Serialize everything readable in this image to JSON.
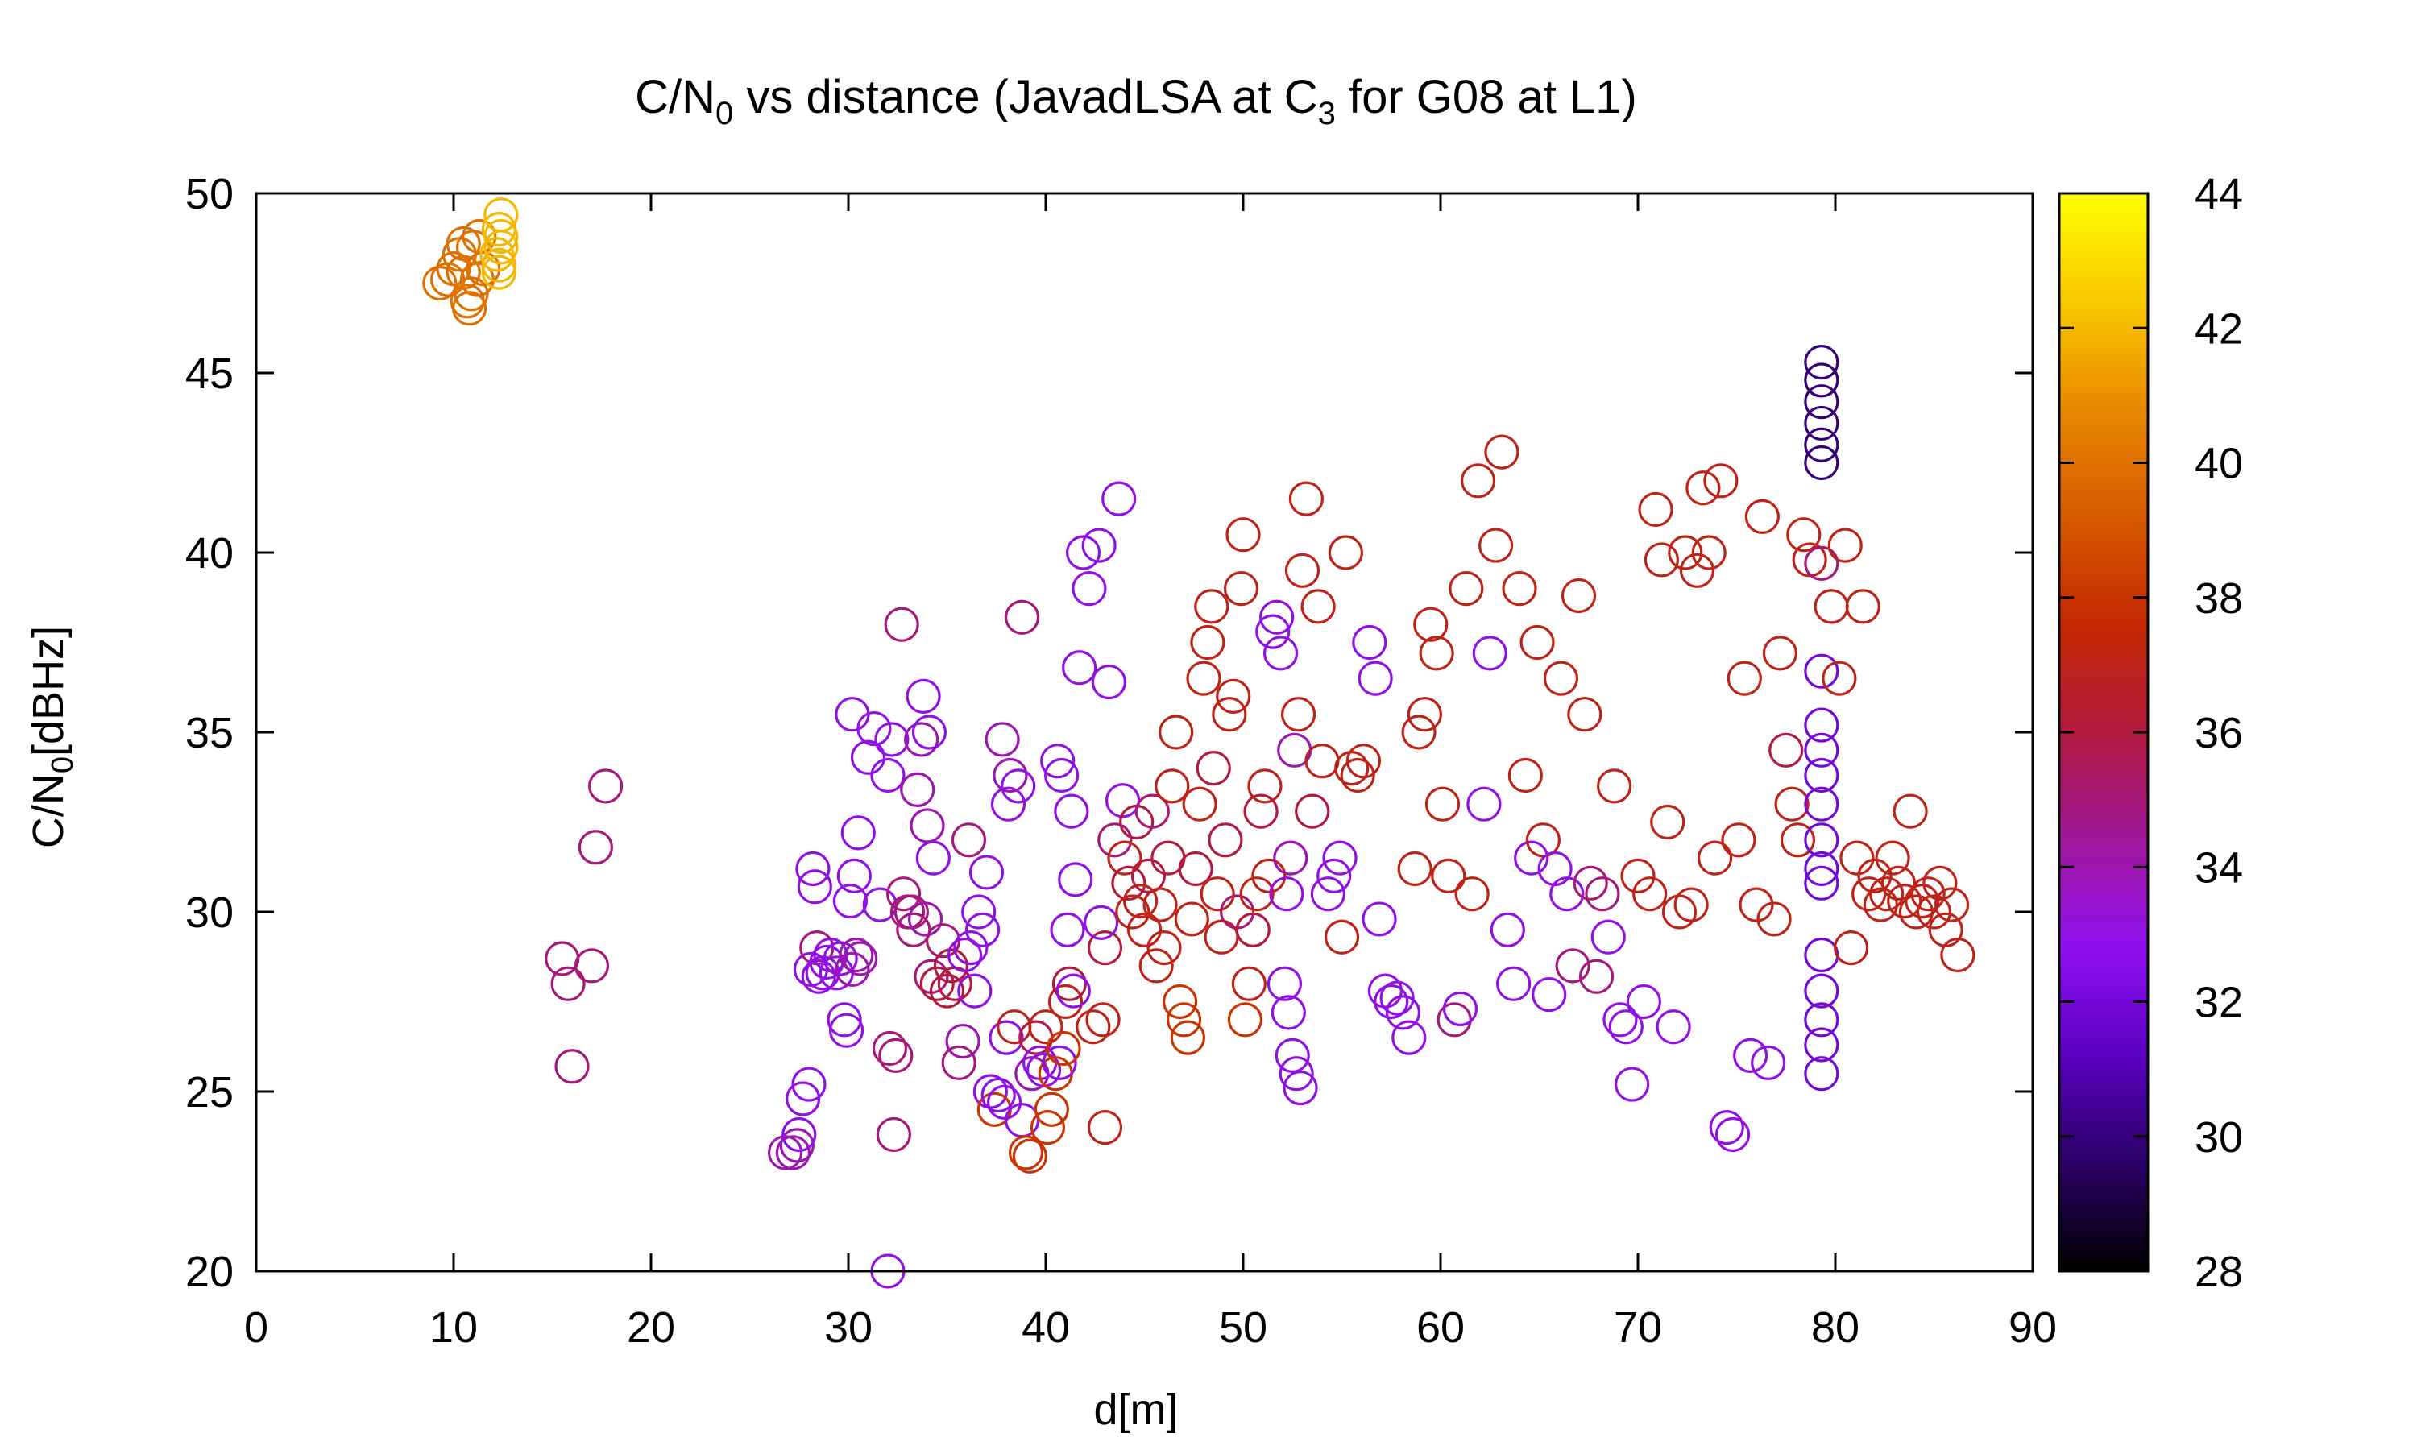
{
  "chart_data": {
    "type": "scatter",
    "title_main": "C/N",
    "title_sub": "0",
    "title_mid": " vs distance (JavadLSA at C",
    "title_sub2": "3",
    "title_end": " for G08 at L1)",
    "xlabel": "d[m]",
    "ylabel_main": "C/N",
    "ylabel_sub": "0",
    "ylabel_end": "[dBHz]",
    "xlim": [
      0,
      90
    ],
    "ylim": [
      20,
      50
    ],
    "x_ticks": [
      "0",
      "10",
      "20",
      "30",
      "40",
      "50",
      "60",
      "70",
      "80",
      "90"
    ],
    "y_ticks": [
      "20",
      "25",
      "30",
      "35",
      "40",
      "45",
      "50"
    ],
    "colorbar": {
      "range": [
        28,
        44
      ],
      "ticks": [
        "28",
        "30",
        "32",
        "34",
        "36",
        "38",
        "40",
        "42",
        "44"
      ],
      "palette": [
        "#000000",
        "#2a0066",
        "#5a00c0",
        "#8f10f0",
        "#a0189a",
        "#b31a40",
        "#c42800",
        "#d65a00",
        "#e88800",
        "#f8c800",
        "#ffff00"
      ]
    },
    "grid": false,
    "legend": "none",
    "points": [
      [
        9.3,
        47.5,
        40
      ],
      [
        9.7,
        47.6,
        40
      ],
      [
        10.0,
        47.9,
        40
      ],
      [
        10.3,
        48.3,
        40
      ],
      [
        10.5,
        47.8,
        40
      ],
      [
        10.7,
        47.0,
        40
      ],
      [
        10.8,
        46.8,
        40
      ],
      [
        11.0,
        48.5,
        40
      ],
      [
        10.5,
        48.6,
        40
      ],
      [
        11.2,
        47.6,
        40
      ],
      [
        11.5,
        47.9,
        40
      ],
      [
        11.3,
        48.8,
        40
      ],
      [
        10.9,
        47.2,
        40
      ],
      [
        12.3,
        48.0,
        42
      ],
      [
        12.4,
        48.5,
        42
      ],
      [
        12.3,
        49.0,
        42
      ],
      [
        12.4,
        49.4,
        42
      ],
      [
        12.3,
        47.8,
        42
      ],
      [
        12.2,
        48.3,
        42
      ],
      [
        12.4,
        48.8,
        42
      ],
      [
        15.5,
        28.7,
        35
      ],
      [
        15.8,
        28.0,
        35
      ],
      [
        16.0,
        25.7,
        35
      ],
      [
        17.0,
        28.5,
        35
      ],
      [
        17.2,
        31.8,
        35
      ],
      [
        17.7,
        33.5,
        35
      ],
      [
        26.8,
        23.3,
        34
      ],
      [
        27.2,
        23.3,
        34
      ],
      [
        27.4,
        23.5,
        34
      ],
      [
        27.5,
        23.8,
        33
      ],
      [
        27.7,
        24.8,
        33
      ],
      [
        28.0,
        25.2,
        33
      ],
      [
        28.1,
        28.4,
        33
      ],
      [
        28.3,
        30.7,
        33
      ],
      [
        28.2,
        31.2,
        33
      ],
      [
        28.4,
        29.0,
        35
      ],
      [
        28.5,
        28.2,
        33
      ],
      [
        28.7,
        28.3,
        33
      ],
      [
        28.9,
        28.6,
        33
      ],
      [
        29.1,
        28.8,
        33
      ],
      [
        29.4,
        28.3,
        33
      ],
      [
        29.6,
        28.7,
        33
      ],
      [
        29.8,
        27.0,
        33
      ],
      [
        29.9,
        26.7,
        33
      ],
      [
        30.2,
        28.4,
        34
      ],
      [
        30.4,
        28.8,
        34
      ],
      [
        30.6,
        28.7,
        34
      ],
      [
        30.1,
        30.3,
        33
      ],
      [
        30.3,
        31.0,
        33
      ],
      [
        30.5,
        32.2,
        33
      ],
      [
        30.2,
        35.5,
        33
      ],
      [
        31.0,
        34.3,
        33
      ],
      [
        31.3,
        35.1,
        33
      ],
      [
        31.6,
        30.2,
        33
      ],
      [
        32.0,
        33.8,
        33
      ],
      [
        32.2,
        34.8,
        33
      ],
      [
        32.4,
        26.0,
        35
      ],
      [
        32.1,
        26.2,
        35
      ],
      [
        32.3,
        23.8,
        35
      ],
      [
        32.0,
        20.0,
        33
      ],
      [
        32.7,
        38.0,
        35
      ],
      [
        32.8,
        30.5,
        35
      ],
      [
        33.0,
        30.0,
        35
      ],
      [
        33.2,
        30.0,
        35
      ],
      [
        33.3,
        29.5,
        35
      ],
      [
        33.5,
        33.4,
        34
      ],
      [
        33.7,
        34.8,
        34
      ],
      [
        33.8,
        36.0,
        33
      ],
      [
        34.1,
        35.0,
        33
      ],
      [
        34.3,
        31.5,
        33
      ],
      [
        34.0,
        32.4,
        34
      ],
      [
        33.9,
        29.8,
        34
      ],
      [
        34.2,
        28.2,
        35
      ],
      [
        34.5,
        28.0,
        36
      ],
      [
        34.8,
        29.2,
        35
      ],
      [
        35.0,
        27.8,
        36
      ],
      [
        35.2,
        28.5,
        36
      ],
      [
        35.4,
        28.0,
        36
      ],
      [
        35.6,
        25.8,
        35
      ],
      [
        35.8,
        26.4,
        34
      ],
      [
        35.9,
        28.8,
        33
      ],
      [
        36.2,
        29.0,
        33
      ],
      [
        36.4,
        27.8,
        33
      ],
      [
        36.6,
        30.0,
        33
      ],
      [
        36.8,
        29.5,
        33
      ],
      [
        36.1,
        32.0,
        35
      ],
      [
        37.0,
        31.1,
        33
      ],
      [
        37.2,
        25.0,
        33
      ],
      [
        37.4,
        24.5,
        38
      ],
      [
        37.6,
        24.9,
        33
      ],
      [
        37.9,
        24.7,
        33
      ],
      [
        38.0,
        26.5,
        33
      ],
      [
        38.1,
        33.0,
        33
      ],
      [
        38.2,
        33.8,
        34
      ],
      [
        37.8,
        34.8,
        34
      ],
      [
        38.4,
        26.8,
        37
      ],
      [
        38.6,
        33.5,
        33
      ],
      [
        38.8,
        24.2,
        33
      ],
      [
        38.8,
        38.2,
        35
      ],
      [
        39.0,
        23.3,
        38
      ],
      [
        39.2,
        23.2,
        38
      ],
      [
        39.3,
        25.5,
        34
      ],
      [
        39.5,
        26.5,
        36
      ],
      [
        39.7,
        25.8,
        33
      ],
      [
        39.9,
        25.6,
        33
      ],
      [
        40.0,
        26.8,
        37
      ],
      [
        40.1,
        24.0,
        38
      ],
      [
        40.3,
        24.5,
        38
      ],
      [
        40.5,
        25.5,
        38
      ],
      [
        40.7,
        25.8,
        33
      ],
      [
        40.9,
        26.2,
        38
      ],
      [
        41.0,
        27.5,
        37
      ],
      [
        41.2,
        28.0,
        36
      ],
      [
        41.4,
        27.8,
        33
      ],
      [
        41.1,
        29.5,
        33
      ],
      [
        41.5,
        30.9,
        33
      ],
      [
        40.6,
        34.2,
        33
      ],
      [
        40.8,
        33.8,
        33
      ],
      [
        41.7,
        36.8,
        33
      ],
      [
        41.3,
        32.8,
        33
      ],
      [
        41.9,
        40.0,
        33
      ],
      [
        42.2,
        39.0,
        33
      ],
      [
        42.7,
        40.2,
        33
      ],
      [
        42.4,
        26.8,
        37
      ],
      [
        42.9,
        27.0,
        37
      ],
      [
        43.0,
        29.0,
        36
      ],
      [
        43.2,
        36.4,
        33
      ],
      [
        43.5,
        32.0,
        35
      ],
      [
        43.7,
        41.5,
        33
      ],
      [
        43.9,
        33.1,
        33
      ],
      [
        43.0,
        24.0,
        37
      ],
      [
        42.8,
        29.7,
        33
      ],
      [
        44.0,
        31.5,
        37
      ],
      [
        44.2,
        30.8,
        36
      ],
      [
        44.4,
        30.0,
        37
      ],
      [
        44.6,
        32.5,
        36
      ],
      [
        44.8,
        30.3,
        37
      ],
      [
        45.0,
        29.5,
        37
      ],
      [
        45.2,
        31.0,
        36
      ],
      [
        45.4,
        32.8,
        35
      ],
      [
        45.6,
        28.5,
        37
      ],
      [
        45.8,
        30.2,
        37
      ],
      [
        46.0,
        29.0,
        37
      ],
      [
        46.2,
        31.5,
        36
      ],
      [
        46.4,
        33.5,
        37
      ],
      [
        46.6,
        35.0,
        37
      ],
      [
        46.8,
        27.5,
        38
      ],
      [
        47.0,
        27.0,
        38
      ],
      [
        47.2,
        26.5,
        38
      ],
      [
        47.4,
        29.8,
        37
      ],
      [
        47.6,
        31.2,
        36
      ],
      [
        47.8,
        33.0,
        37
      ],
      [
        48.0,
        36.5,
        37
      ],
      [
        48.2,
        37.5,
        37
      ],
      [
        48.4,
        38.5,
        37
      ],
      [
        48.5,
        34.0,
        36
      ],
      [
        48.7,
        30.5,
        37
      ],
      [
        48.9,
        29.3,
        37
      ],
      [
        49.1,
        32.0,
        36
      ],
      [
        49.3,
        35.5,
        37
      ],
      [
        49.5,
        36.0,
        37
      ],
      [
        49.7,
        30.0,
        35
      ],
      [
        49.9,
        39.0,
        37
      ],
      [
        50.0,
        40.5,
        37
      ],
      [
        50.1,
        27.0,
        38
      ],
      [
        50.3,
        28.0,
        37
      ],
      [
        50.5,
        29.5,
        36
      ],
      [
        50.7,
        30.5,
        37
      ],
      [
        50.9,
        32.8,
        36
      ],
      [
        51.1,
        33.5,
        37
      ],
      [
        51.3,
        31.0,
        37
      ],
      [
        51.5,
        37.8,
        33
      ],
      [
        51.7,
        38.2,
        33
      ],
      [
        51.9,
        37.2,
        33
      ],
      [
        52.1,
        28.0,
        33
      ],
      [
        52.3,
        27.2,
        33
      ],
      [
        52.5,
        26.0,
        33
      ],
      [
        52.7,
        25.5,
        33
      ],
      [
        52.9,
        25.1,
        33
      ],
      [
        52.2,
        30.5,
        33
      ],
      [
        52.4,
        31.5,
        34
      ],
      [
        52.6,
        34.5,
        34
      ],
      [
        52.8,
        35.5,
        37
      ],
      [
        53.0,
        39.5,
        37
      ],
      [
        53.2,
        41.5,
        37
      ],
      [
        53.5,
        32.8,
        36
      ],
      [
        53.8,
        38.5,
        37
      ],
      [
        54.0,
        34.2,
        37
      ],
      [
        54.3,
        30.5,
        33
      ],
      [
        54.6,
        31.0,
        33
      ],
      [
        54.9,
        31.5,
        33
      ],
      [
        55.2,
        40.0,
        37
      ],
      [
        55.0,
        29.3,
        37
      ],
      [
        55.5,
        34.0,
        37
      ],
      [
        55.8,
        33.8,
        37
      ],
      [
        56.1,
        34.2,
        37
      ],
      [
        56.4,
        37.5,
        33
      ],
      [
        56.7,
        36.5,
        33
      ],
      [
        56.9,
        29.8,
        33
      ],
      [
        57.2,
        27.8,
        33
      ],
      [
        57.5,
        27.5,
        33
      ],
      [
        57.8,
        27.6,
        33
      ],
      [
        58.1,
        27.2,
        33
      ],
      [
        58.4,
        26.5,
        33
      ],
      [
        58.7,
        31.2,
        37
      ],
      [
        58.9,
        35.0,
        37
      ],
      [
        59.2,
        35.5,
        37
      ],
      [
        59.5,
        38.0,
        37
      ],
      [
        59.8,
        37.2,
        37
      ],
      [
        60.1,
        33.0,
        37
      ],
      [
        60.4,
        31.0,
        37
      ],
      [
        60.7,
        27.0,
        35
      ],
      [
        61.0,
        27.3,
        33
      ],
      [
        61.3,
        39.0,
        37
      ],
      [
        61.6,
        30.5,
        37
      ],
      [
        61.9,
        42.0,
        37
      ],
      [
        62.2,
        33.0,
        33
      ],
      [
        62.5,
        37.2,
        33
      ],
      [
        62.8,
        40.2,
        37
      ],
      [
        63.1,
        42.8,
        37
      ],
      [
        63.4,
        29.5,
        33
      ],
      [
        63.7,
        28.0,
        33
      ],
      [
        64.0,
        39.0,
        37
      ],
      [
        64.3,
        33.8,
        37
      ],
      [
        64.6,
        31.5,
        33
      ],
      [
        64.9,
        37.5,
        37
      ],
      [
        65.2,
        32.0,
        37
      ],
      [
        65.5,
        27.7,
        33
      ],
      [
        65.8,
        31.2,
        33
      ],
      [
        66.1,
        36.5,
        37
      ],
      [
        66.4,
        30.5,
        33
      ],
      [
        66.7,
        28.5,
        35
      ],
      [
        67.0,
        38.8,
        37
      ],
      [
        67.3,
        35.5,
        37
      ],
      [
        67.6,
        30.8,
        35
      ],
      [
        67.9,
        28.2,
        35
      ],
      [
        68.2,
        30.5,
        35
      ],
      [
        68.5,
        29.3,
        33
      ],
      [
        68.8,
        33.5,
        37
      ],
      [
        69.1,
        27.0,
        33
      ],
      [
        69.4,
        26.8,
        33
      ],
      [
        69.7,
        25.2,
        33
      ],
      [
        70.0,
        31.0,
        37
      ],
      [
        70.3,
        27.5,
        33
      ],
      [
        70.6,
        30.5,
        37
      ],
      [
        70.9,
        41.2,
        37
      ],
      [
        71.2,
        39.8,
        37
      ],
      [
        71.5,
        32.5,
        37
      ],
      [
        71.8,
        26.8,
        33
      ],
      [
        72.1,
        30.0,
        37
      ],
      [
        72.4,
        40.0,
        37
      ],
      [
        72.7,
        30.2,
        37
      ],
      [
        73.0,
        39.5,
        37
      ],
      [
        73.3,
        41.8,
        37
      ],
      [
        73.6,
        40.0,
        37
      ],
      [
        73.9,
        31.5,
        37
      ],
      [
        74.2,
        42.0,
        37
      ],
      [
        74.5,
        24.0,
        33
      ],
      [
        74.8,
        23.8,
        33
      ],
      [
        75.1,
        32.0,
        37
      ],
      [
        75.4,
        36.5,
        37
      ],
      [
        75.7,
        26.0,
        33
      ],
      [
        76.0,
        30.2,
        37
      ],
      [
        76.3,
        41.0,
        37
      ],
      [
        76.6,
        25.8,
        33
      ],
      [
        76.9,
        29.8,
        37
      ],
      [
        77.2,
        37.2,
        37
      ],
      [
        77.5,
        34.5,
        36
      ],
      [
        77.8,
        33.0,
        37
      ],
      [
        78.1,
        32.0,
        37
      ],
      [
        78.4,
        40.5,
        37
      ],
      [
        78.7,
        39.8,
        37
      ],
      [
        79.3,
        45.3,
        30
      ],
      [
        79.3,
        44.8,
        30
      ],
      [
        79.3,
        44.2,
        30
      ],
      [
        79.3,
        43.6,
        30
      ],
      [
        79.3,
        43.0,
        30
      ],
      [
        79.3,
        42.5,
        30
      ],
      [
        79.3,
        36.7,
        32
      ],
      [
        79.3,
        35.2,
        32
      ],
      [
        79.3,
        34.5,
        32
      ],
      [
        79.3,
        33.8,
        32
      ],
      [
        79.3,
        33.0,
        32
      ],
      [
        79.3,
        32.0,
        32
      ],
      [
        79.3,
        31.2,
        32
      ],
      [
        79.3,
        30.8,
        32
      ],
      [
        79.3,
        28.8,
        32
      ],
      [
        79.3,
        27.8,
        32
      ],
      [
        79.3,
        27.0,
        32
      ],
      [
        79.3,
        26.3,
        32
      ],
      [
        79.3,
        25.5,
        32
      ],
      [
        79.3,
        39.7,
        35
      ],
      [
        79.8,
        38.5,
        37
      ],
      [
        80.2,
        36.5,
        37
      ],
      [
        80.5,
        40.2,
        37
      ],
      [
        80.8,
        29.0,
        37
      ],
      [
        81.1,
        31.5,
        37
      ],
      [
        81.4,
        38.5,
        37
      ],
      [
        81.7,
        30.5,
        37
      ],
      [
        82.0,
        31.0,
        37
      ],
      [
        82.3,
        30.2,
        37
      ],
      [
        82.6,
        30.5,
        37
      ],
      [
        82.9,
        31.5,
        37
      ],
      [
        83.2,
        30.8,
        37
      ],
      [
        83.5,
        30.3,
        37
      ],
      [
        83.8,
        32.8,
        37
      ],
      [
        84.1,
        30.0,
        37
      ],
      [
        84.4,
        30.3,
        37
      ],
      [
        84.7,
        30.5,
        37
      ],
      [
        85.0,
        30.0,
        37
      ],
      [
        85.3,
        30.8,
        37
      ],
      [
        85.6,
        29.5,
        37
      ],
      [
        85.9,
        30.2,
        37
      ],
      [
        86.2,
        28.8,
        37
      ]
    ]
  }
}
